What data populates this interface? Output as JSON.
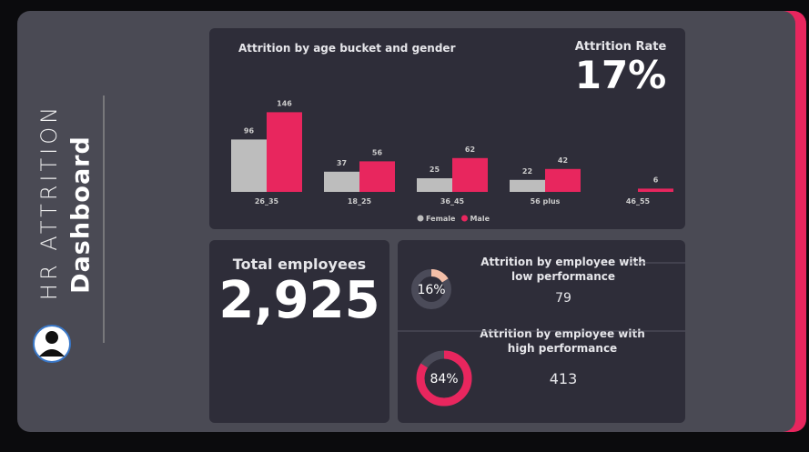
{
  "sidebar": {
    "title": "HR ATTRITION",
    "subtitle": "Dashboard"
  },
  "chart_data": {
    "type": "bar",
    "title": "Attrition by age bucket and gender",
    "categories": [
      "26_35",
      "18_25",
      "36_45",
      "56 plus",
      "46_55"
    ],
    "series": [
      {
        "name": "Female",
        "color": "#bdbdbd",
        "values": [
          96,
          37,
          25,
          22,
          null
        ]
      },
      {
        "name": "Male",
        "color": "#e8265e",
        "values": [
          146,
          56,
          62,
          42,
          6
        ]
      }
    ],
    "legend": "bottom"
  },
  "attrition_rate": {
    "label": "Attrition Rate",
    "value": "17%"
  },
  "total_employees": {
    "label": "Total employees",
    "value": "2,925"
  },
  "performance_cards": [
    {
      "title": "Attrition by employee with low performance",
      "percent": 16,
      "percent_label": "16%",
      "count": "79",
      "color": "#f4bfa8"
    },
    {
      "title": "Attrition by employee with high performance",
      "percent": 84,
      "percent_label": "84%",
      "count": "413",
      "color": "#e8265e"
    }
  ]
}
